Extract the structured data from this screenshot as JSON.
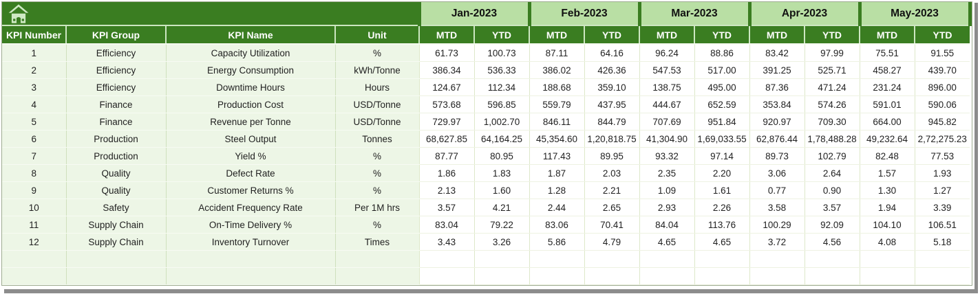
{
  "header": {
    "columns": [
      "KPI Number",
      "KPI Group",
      "KPI Name",
      "Unit"
    ],
    "months": [
      "Jan-2023",
      "Feb-2023",
      "Mar-2023",
      "Apr-2023",
      "May-2023"
    ],
    "sub_columns": [
      "MTD",
      "YTD"
    ],
    "home_icon": "home-icon"
  },
  "rows": [
    {
      "number": "1",
      "group": "Efficiency",
      "name": "Capacity Utilization",
      "unit": "%",
      "values": [
        "61.73",
        "100.73",
        "87.11",
        "64.16",
        "96.24",
        "88.86",
        "83.42",
        "97.99",
        "75.51",
        "91.55"
      ]
    },
    {
      "number": "2",
      "group": "Efficiency",
      "name": "Energy Consumption",
      "unit": "kWh/Tonne",
      "values": [
        "386.34",
        "536.33",
        "386.02",
        "426.36",
        "547.53",
        "517.00",
        "391.25",
        "525.71",
        "458.27",
        "439.70"
      ]
    },
    {
      "number": "3",
      "group": "Efficiency",
      "name": "Downtime Hours",
      "unit": "Hours",
      "values": [
        "124.67",
        "112.34",
        "188.68",
        "359.10",
        "138.75",
        "495.00",
        "87.36",
        "471.24",
        "231.24",
        "896.00"
      ]
    },
    {
      "number": "4",
      "group": "Finance",
      "name": "Production Cost",
      "unit": "USD/Tonne",
      "values": [
        "573.68",
        "596.85",
        "559.79",
        "437.95",
        "444.67",
        "652.59",
        "353.84",
        "574.26",
        "591.01",
        "590.06"
      ]
    },
    {
      "number": "5",
      "group": "Finance",
      "name": "Revenue per Tonne",
      "unit": "USD/Tonne",
      "values": [
        "729.97",
        "1,002.70",
        "846.11",
        "844.79",
        "707.69",
        "951.84",
        "920.97",
        "709.30",
        "664.00",
        "945.82"
      ]
    },
    {
      "number": "6",
      "group": "Production",
      "name": "Steel Output",
      "unit": "Tonnes",
      "values": [
        "68,627.85",
        "64,164.25",
        "45,354.60",
        "1,20,818.75",
        "41,304.90",
        "1,69,033.55",
        "62,876.44",
        "1,78,488.28",
        "49,232.64",
        "2,72,275.23"
      ]
    },
    {
      "number": "7",
      "group": "Production",
      "name": "Yield %",
      "unit": "%",
      "values": [
        "87.77",
        "80.95",
        "117.43",
        "89.95",
        "93.32",
        "97.14",
        "89.73",
        "102.79",
        "82.48",
        "77.53"
      ]
    },
    {
      "number": "8",
      "group": "Quality",
      "name": "Defect Rate",
      "unit": "%",
      "values": [
        "1.86",
        "1.83",
        "1.87",
        "2.03",
        "2.35",
        "2.20",
        "3.06",
        "2.64",
        "1.57",
        "1.93"
      ]
    },
    {
      "number": "9",
      "group": "Quality",
      "name": "Customer Returns %",
      "unit": "%",
      "values": [
        "2.13",
        "1.60",
        "1.28",
        "2.21",
        "1.09",
        "1.61",
        "0.77",
        "0.90",
        "1.30",
        "1.27"
      ]
    },
    {
      "number": "10",
      "group": "Safety",
      "name": "Accident Frequency Rate",
      "unit": "Per 1M hrs",
      "values": [
        "3.57",
        "4.21",
        "2.44",
        "2.65",
        "2.93",
        "2.26",
        "3.58",
        "3.57",
        "1.94",
        "3.39"
      ]
    },
    {
      "number": "11",
      "group": "Supply Chain",
      "name": "On-Time Delivery %",
      "unit": "%",
      "values": [
        "83.04",
        "79.22",
        "83.06",
        "70.41",
        "84.04",
        "113.76",
        "100.29",
        "92.09",
        "104.10",
        "106.51"
      ]
    },
    {
      "number": "12",
      "group": "Supply Chain",
      "name": "Inventory Turnover",
      "unit": "Times",
      "values": [
        "3.43",
        "3.26",
        "5.86",
        "4.79",
        "4.65",
        "4.65",
        "3.72",
        "4.56",
        "4.08",
        "5.18"
      ]
    }
  ],
  "empty_row_count": 2,
  "colors": {
    "header_dark_green": "#3a7d21",
    "month_header_green": "#b9dfa4",
    "row_green": "#edf6e6",
    "shadow_gray": "#8c8c8c",
    "header_text": "#ffffff",
    "data_text": "#1f1f1f",
    "home_icon_green": "#cfe9c4"
  }
}
